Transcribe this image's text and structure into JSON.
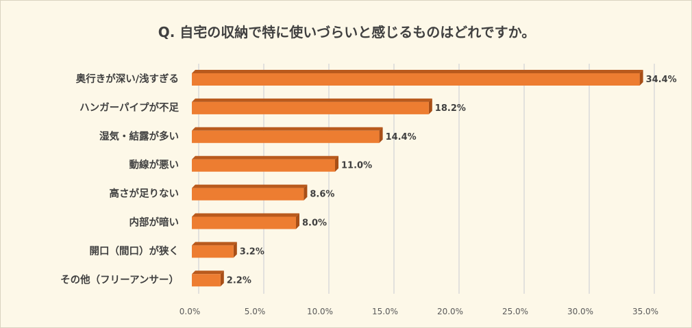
{
  "chart_data": {
    "type": "bar",
    "orientation": "horizontal",
    "title": "Q. 自宅の収納で特に使いづらいと感じるものはどれですか。",
    "categories": [
      "奥行きが深い/浅すぎる",
      "ハンガーパイプが不足",
      "湿気・結露が多い",
      "動線が悪い",
      "高さが足りない",
      "内部が暗い",
      "開口（間口）が狭く",
      "その他（フリーアンサー）"
    ],
    "values": [
      34.4,
      18.2,
      14.4,
      11.0,
      8.6,
      8.0,
      3.2,
      2.2
    ],
    "data_labels": [
      "34.4%",
      "18.2%",
      "14.4%",
      "11.0%",
      "8.6%",
      "8.0%",
      "3.2%",
      "2.2%"
    ],
    "xlim": [
      0,
      35
    ],
    "xticks": [
      "0.0%",
      "5.0%",
      "10.0%",
      "15.0%",
      "20.0%",
      "25.0%",
      "30.0%",
      "35.0%"
    ],
    "grid": true,
    "bar_color": "#ed7d31",
    "bar_top_color": "#b95a1d"
  }
}
